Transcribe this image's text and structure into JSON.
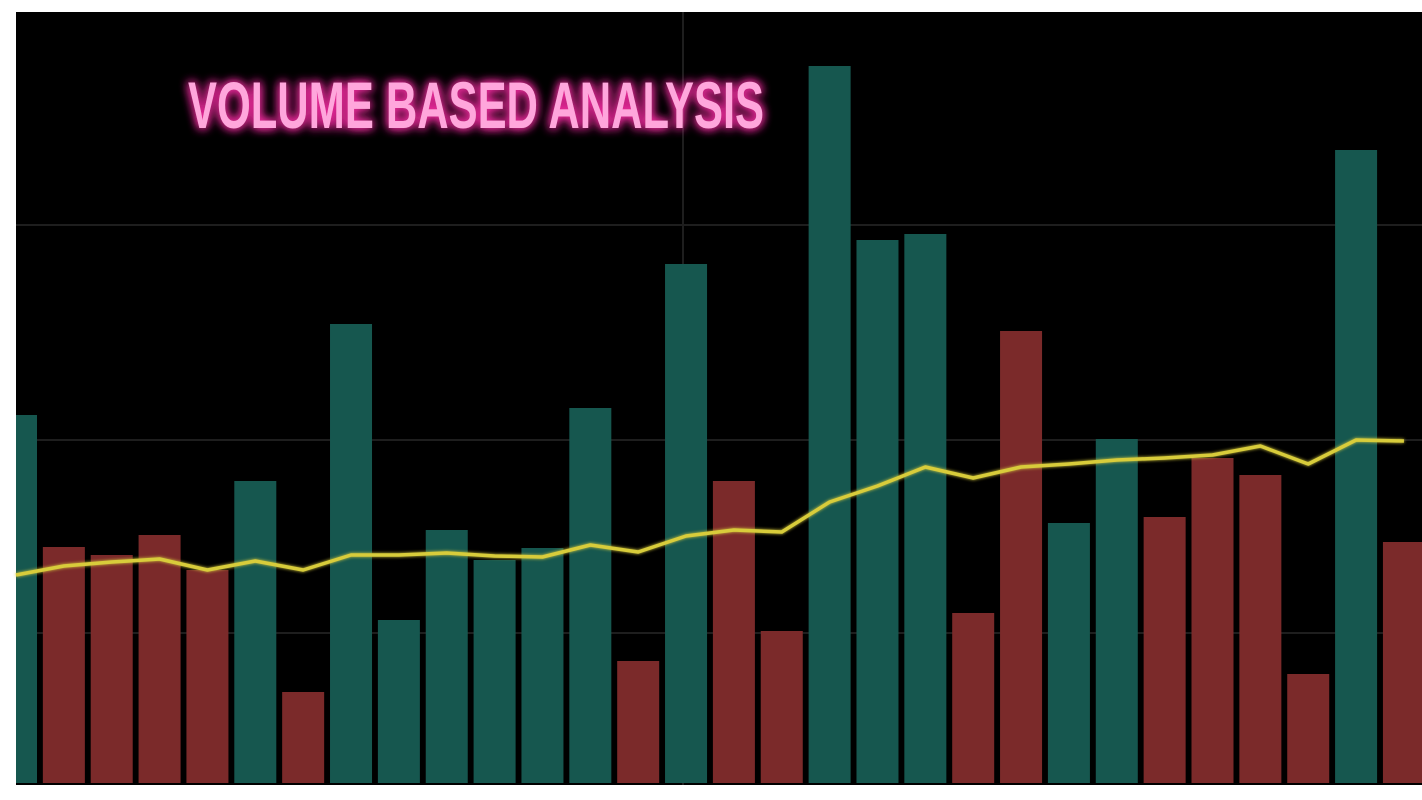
{
  "chart_data": {
    "type": "bar",
    "title": "VOLUME BASED ANALYSIS",
    "categories": [
      null,
      null,
      null,
      null,
      null,
      null,
      null,
      null,
      null,
      null,
      null,
      null,
      null,
      null,
      null,
      null,
      null,
      null,
      null,
      null,
      null,
      null,
      null,
      null,
      null,
      null,
      null,
      null,
      null,
      null
    ],
    "values": [
      368,
      236,
      228,
      248,
      213,
      302,
      91,
      459,
      163,
      253,
      223,
      235,
      375,
      122,
      519,
      302,
      152,
      717,
      543,
      549,
      170,
      452,
      260,
      344,
      266,
      325,
      308,
      109,
      633,
      241
    ],
    "bar_colors": [
      "#16574f",
      "#7b2a2a",
      "#7b2a2a",
      "#7b2a2a",
      "#7b2a2a",
      "#16574f",
      "#7b2a2a",
      "#16574f",
      "#16574f",
      "#16574f",
      "#16574f",
      "#16574f",
      "#16574f",
      "#7b2a2a",
      "#16574f",
      "#7b2a2a",
      "#7b2a2a",
      "#16574f",
      "#16574f",
      "#16574f",
      "#7b2a2a",
      "#7b2a2a",
      "#16574f",
      "#16574f",
      "#7b2a2a",
      "#7b2a2a",
      "#7b2a2a",
      "#7b2a2a",
      "#16574f",
      "#7b2a2a"
    ],
    "line_values": [
      208,
      217,
      221,
      224,
      213,
      222,
      213,
      228,
      228,
      230,
      227,
      226,
      238,
      231,
      247,
      253,
      251,
      281,
      297,
      316,
      305,
      316,
      319,
      323,
      325,
      328,
      337,
      319,
      343,
      342
    ],
    "line_color": "#d8cc3a",
    "ylim": [
      0,
      771
    ],
    "yticks": [
      150,
      343,
      558
    ],
    "grid": true
  }
}
